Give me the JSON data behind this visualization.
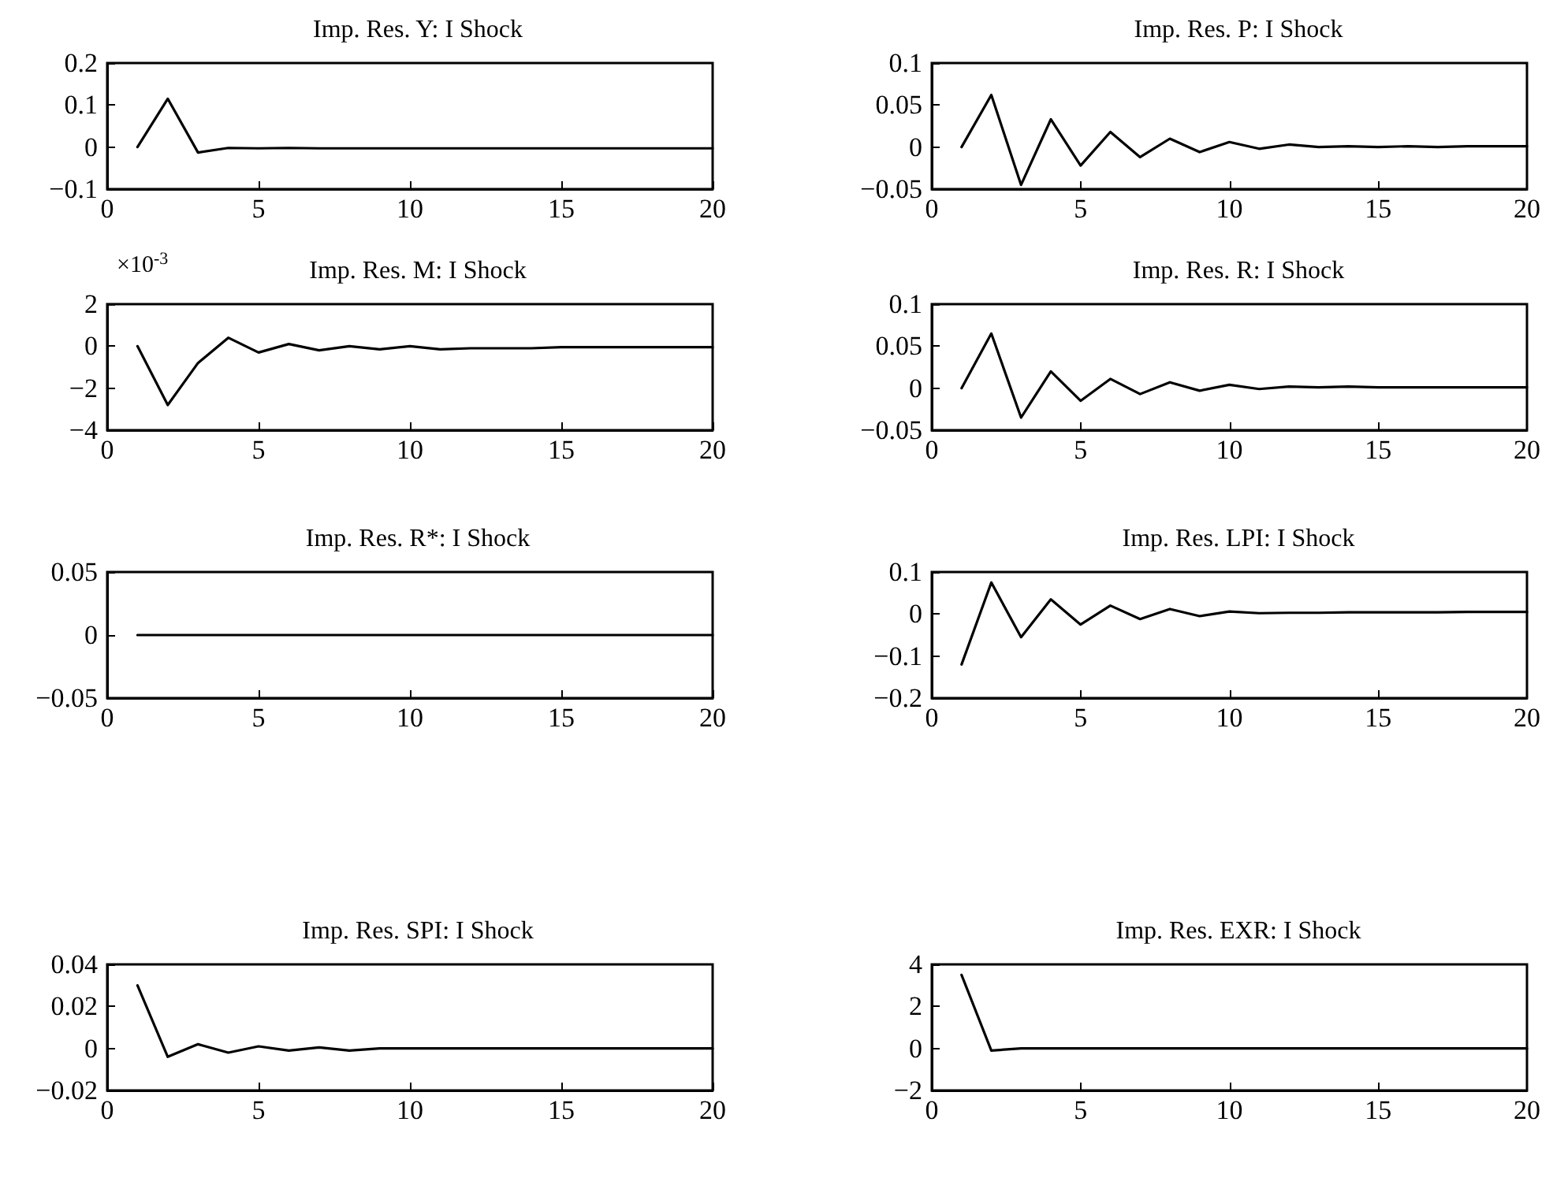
{
  "chart_data": [
    {
      "type": "line",
      "title": "Imp. Res. Y: I Shock",
      "x": [
        1,
        2,
        3,
        4,
        5,
        6,
        7,
        8,
        9,
        10,
        11,
        12,
        13,
        14,
        15,
        16,
        17,
        18,
        19,
        20
      ],
      "xlim": [
        0,
        20
      ],
      "xticks": [
        0,
        5,
        10,
        15,
        20
      ],
      "ylim": [
        -0.1,
        0.2
      ],
      "yticks": [
        -0.1,
        0,
        0.1,
        0.2
      ],
      "marker": "none",
      "line_style": "solid",
      "series": [
        {
          "color": "#000000",
          "values": [
            0,
            0.115,
            -0.013,
            -0.002,
            -0.003,
            -0.002,
            -0.003,
            -0.003,
            -0.003,
            -0.003,
            -0.003,
            -0.003,
            -0.003,
            -0.003,
            -0.003,
            -0.003,
            -0.003,
            -0.003,
            -0.003,
            -0.003
          ]
        }
      ]
    },
    {
      "type": "line",
      "title": "Imp. Res. P: I Shock",
      "x": [
        1,
        2,
        3,
        4,
        5,
        6,
        7,
        8,
        9,
        10,
        11,
        12,
        13,
        14,
        15,
        16,
        17,
        18,
        19,
        20
      ],
      "xlim": [
        0,
        20
      ],
      "xticks": [
        0,
        5,
        10,
        15,
        20
      ],
      "ylim": [
        -0.05,
        0.1
      ],
      "yticks": [
        -0.05,
        0,
        0.05,
        0.1
      ],
      "marker": "none",
      "line_style": "solid",
      "series": [
        {
          "color": "#000000",
          "values": [
            0,
            0.062,
            -0.045,
            0.033,
            -0.022,
            0.018,
            -0.012,
            0.01,
            -0.006,
            0.006,
            -0.002,
            0.003,
            0,
            0.001,
            0,
            0.001,
            0,
            0.001,
            0.001,
            0.001
          ]
        }
      ]
    },
    {
      "type": "line",
      "title": "Imp. Res. M: I Shock",
      "annotations": [
        "×10$^{-3}$"
      ],
      "x": [
        1,
        2,
        3,
        4,
        5,
        6,
        7,
        8,
        9,
        10,
        11,
        12,
        13,
        14,
        15,
        16,
        17,
        18,
        19,
        20
      ],
      "xlim": [
        0,
        20
      ],
      "xticks": [
        0,
        5,
        10,
        15,
        20
      ],
      "ylim": [
        -4,
        2
      ],
      "yticks": [
        -4,
        -2,
        0,
        2
      ],
      "marker": "none",
      "line_style": "solid",
      "series": [
        {
          "color": "#000000",
          "values": [
            0,
            -2.8,
            -0.8,
            0.4,
            -0.3,
            0.1,
            -0.2,
            0,
            -0.15,
            0,
            -0.15,
            -0.1,
            -0.1,
            -0.1,
            -0.05,
            -0.05,
            -0.05,
            -0.05,
            -0.05,
            -0.05
          ]
        }
      ]
    },
    {
      "type": "line",
      "title": "Imp. Res. R: I Shock",
      "x": [
        1,
        2,
        3,
        4,
        5,
        6,
        7,
        8,
        9,
        10,
        11,
        12,
        13,
        14,
        15,
        16,
        17,
        18,
        19,
        20
      ],
      "xlim": [
        0,
        20
      ],
      "xticks": [
        0,
        5,
        10,
        15,
        20
      ],
      "ylim": [
        -0.05,
        0.1
      ],
      "yticks": [
        -0.05,
        0,
        0.05,
        0.1
      ],
      "marker": "none",
      "line_style": "solid",
      "series": [
        {
          "color": "#000000",
          "values": [
            0,
            0.065,
            -0.035,
            0.02,
            -0.015,
            0.011,
            -0.007,
            0.007,
            -0.003,
            0.004,
            -0.001,
            0.002,
            0.001,
            0.002,
            0.001,
            0.001,
            0.001,
            0.001,
            0.001,
            0.001
          ]
        }
      ]
    },
    {
      "type": "line",
      "title": "Imp. Res. R*: I Shock",
      "x": [
        1,
        2,
        3,
        4,
        5,
        6,
        7,
        8,
        9,
        10,
        11,
        12,
        13,
        14,
        15,
        16,
        17,
        18,
        19,
        20
      ],
      "xlim": [
        0,
        20
      ],
      "xticks": [
        0,
        5,
        10,
        15,
        20
      ],
      "ylim": [
        -0.05,
        0.05
      ],
      "yticks": [
        -0.05,
        0,
        0.05
      ],
      "marker": "none",
      "line_style": "solid",
      "series": [
        {
          "color": "#000000",
          "values": [
            0,
            0,
            0,
            0,
            0,
            0,
            0,
            0,
            0,
            0,
            0,
            0,
            0,
            0,
            0,
            0,
            0,
            0,
            0,
            0
          ]
        }
      ]
    },
    {
      "type": "line",
      "title": "Imp. Res. LPI: I Shock",
      "x": [
        1,
        2,
        3,
        4,
        5,
        6,
        7,
        8,
        9,
        10,
        11,
        12,
        13,
        14,
        15,
        16,
        17,
        18,
        19,
        20
      ],
      "xlim": [
        0,
        20
      ],
      "xticks": [
        0,
        5,
        10,
        15,
        20
      ],
      "ylim": [
        -0.2,
        0.1
      ],
      "yticks": [
        -0.2,
        -0.1,
        0,
        0.1
      ],
      "marker": "none",
      "line_style": "solid",
      "series": [
        {
          "color": "#000000",
          "values": [
            -0.12,
            0.075,
            -0.055,
            0.035,
            -0.025,
            0.02,
            -0.012,
            0.012,
            -0.005,
            0.006,
            0.002,
            0.003,
            0.003,
            0.004,
            0.004,
            0.004,
            0.004,
            0.005,
            0.005,
            0.005
          ]
        }
      ]
    },
    {
      "type": "line",
      "title": "Imp. Res. SPI: I Shock",
      "x": [
        1,
        2,
        3,
        4,
        5,
        6,
        7,
        8,
        9,
        10,
        11,
        12,
        13,
        14,
        15,
        16,
        17,
        18,
        19,
        20
      ],
      "xlim": [
        0,
        20
      ],
      "xticks": [
        0,
        5,
        10,
        15,
        20
      ],
      "ylim": [
        -0.02,
        0.04
      ],
      "yticks": [
        -0.02,
        0,
        0.02,
        0.04
      ],
      "marker": "none",
      "line_style": "solid",
      "series": [
        {
          "color": "#000000",
          "values": [
            0.03,
            -0.004,
            0.002,
            -0.002,
            0.001,
            -0.001,
            0.0005,
            -0.001,
            0,
            0,
            0,
            0,
            0,
            0,
            0,
            0,
            0,
            0,
            0,
            0
          ]
        }
      ]
    },
    {
      "type": "line",
      "title": "Imp. Res. EXR: I Shock",
      "x": [
        1,
        2,
        3,
        4,
        5,
        6,
        7,
        8,
        9,
        10,
        11,
        12,
        13,
        14,
        15,
        16,
        17,
        18,
        19,
        20
      ],
      "xlim": [
        0,
        20
      ],
      "xticks": [
        0,
        5,
        10,
        15,
        20
      ],
      "ylim": [
        -2,
        4
      ],
      "yticks": [
        -2,
        0,
        2,
        4
      ],
      "marker": "none",
      "line_style": "solid",
      "series": [
        {
          "color": "#000000",
          "values": [
            3.5,
            -0.1,
            0,
            0,
            0,
            0,
            0,
            0,
            0,
            0,
            0,
            0,
            0,
            0,
            0,
            0,
            0,
            0,
            0,
            0
          ]
        }
      ]
    }
  ]
}
